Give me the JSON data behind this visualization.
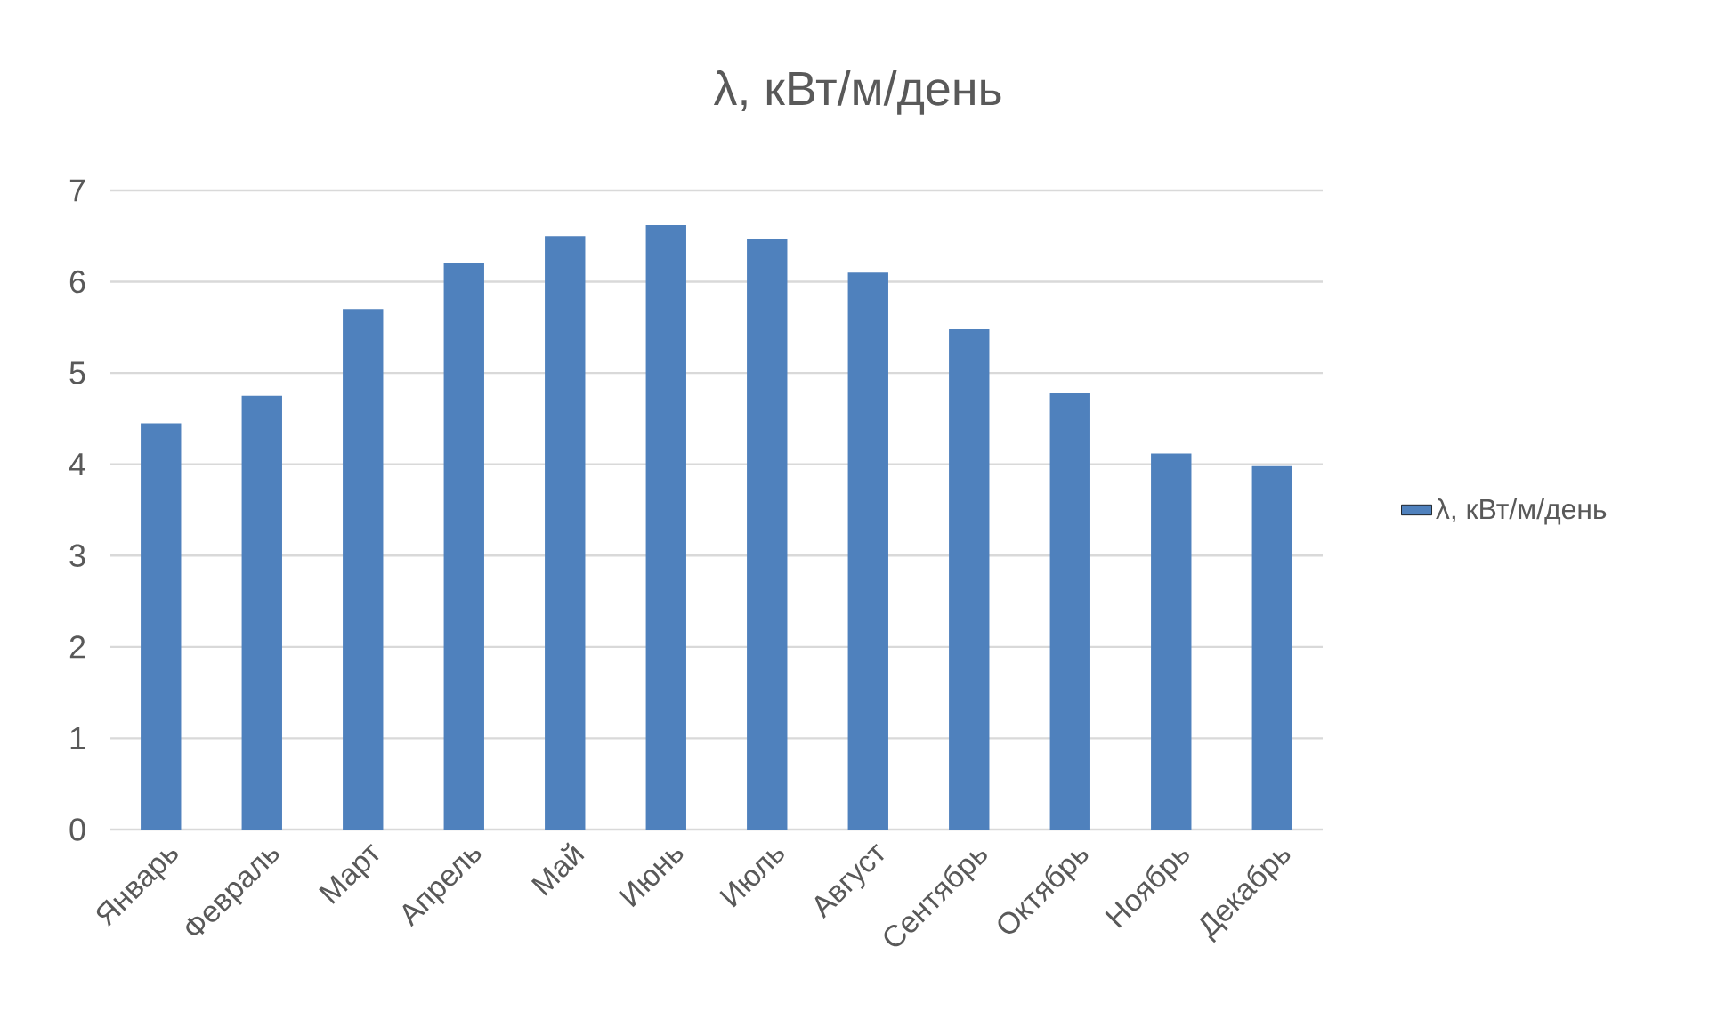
{
  "chart_data": {
    "type": "bar",
    "title": "λ, кВт/м/день",
    "categories": [
      "Январь",
      "Февраль",
      "Март",
      "Апрель",
      "Май",
      "Июнь",
      "Июль",
      "Август",
      "Сентябрь",
      "Октябрь",
      "Ноябрь",
      "Декабрь"
    ],
    "series": [
      {
        "name": "λ, кВт/м/день",
        "color": "#4f81bd",
        "values": [
          4.45,
          4.75,
          5.7,
          6.2,
          6.5,
          6.62,
          6.47,
          6.1,
          5.48,
          4.78,
          4.12,
          3.98
        ]
      }
    ],
    "ylim": [
      0,
      7
    ],
    "yticks": [
      0,
      1,
      2,
      3,
      4,
      5,
      6,
      7
    ],
    "grid": "y",
    "legend": "right"
  }
}
